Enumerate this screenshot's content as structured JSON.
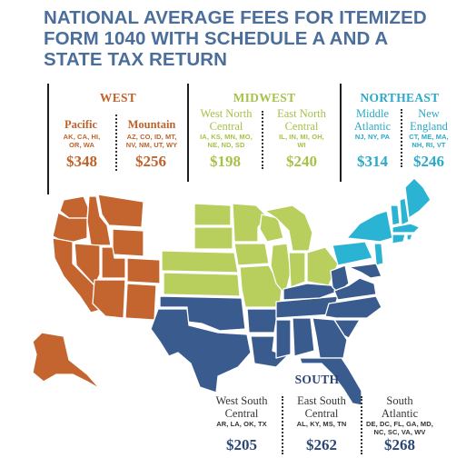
{
  "title_lines": [
    "NATIONAL AVERAGE FEES FOR ITEMIZED",
    "FORM 1040 WITH SCHEDULE A AND A",
    "STATE TAX RETURN"
  ],
  "colors": {
    "title": "#4b6e9a",
    "west": "#c4642f",
    "midwest": "#b8cf5e",
    "northeast": "#2bb3d3",
    "south": "#3a5b8e"
  },
  "regions": {
    "west": {
      "name": "WEST",
      "divisions": [
        {
          "name": "Pacific",
          "states": "AK, CA, HI, OR, WA",
          "fee": "$348"
        },
        {
          "name": "Mountain",
          "states": "AZ, CO, ID, MT, NV, NM, UT, WY",
          "fee": "$256"
        }
      ]
    },
    "midwest": {
      "name": "MIDWEST",
      "divisions": [
        {
          "name": "West North Central",
          "states": "IA, KS, MN, MO, NE, ND, SD",
          "fee": "$198"
        },
        {
          "name": "East North Central",
          "states": "IL, IN, MI, OH, WI",
          "fee": "$240"
        }
      ]
    },
    "northeast": {
      "name": "NORTHEAST",
      "divisions": [
        {
          "name": "Middle Atlantic",
          "states": "NJ, NY, PA",
          "fee": "$314"
        },
        {
          "name": "New England",
          "states": "CT, ME, MA, NH, RI, VT",
          "fee": "$246"
        }
      ]
    },
    "south": {
      "name": "SOUTH",
      "divisions": [
        {
          "name": "West South Central",
          "states": "AR, LA, OK, TX",
          "fee": "$205"
        },
        {
          "name": "East South Central",
          "states": "AL, KY, MS, TN",
          "fee": "$262"
        },
        {
          "name": "South Atlantic",
          "states": "DE, DC, FL, GA, MD, NC, SC, VA, WV",
          "fee": "$268"
        }
      ]
    }
  }
}
